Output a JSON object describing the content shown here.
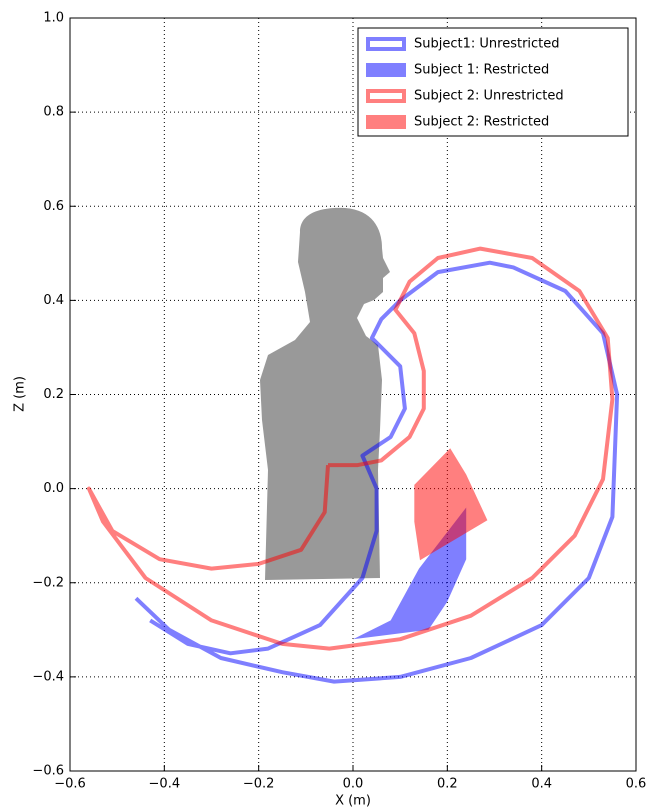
{
  "chart_data": {
    "type": "line",
    "xlabel": "X (m)",
    "ylabel": "Z (m)",
    "xlim": [
      -0.6,
      0.6
    ],
    "xticks": [
      {
        "value": -0.6,
        "label": "−0.6"
      },
      {
        "value": -0.4,
        "label": "−0.4"
      },
      {
        "value": -0.2,
        "label": "−0.2"
      },
      {
        "value": 0,
        "label": "0.0"
      },
      0.2,
      0.4,
      0.6
    ],
    "ylim": [
      -0.6,
      1.0
    ],
    "yticks": [
      {
        "value": -0.6,
        "label": "−0.6"
      },
      {
        "value": -0.4,
        "label": "−0.4"
      },
      {
        "value": -0.2,
        "label": "−0.2"
      },
      {
        "value": 0,
        "label": "0.0"
      },
      0.2,
      0.4,
      0.6,
      0.8,
      {
        "value": 1.0,
        "label": "1.0"
      }
    ],
    "grid": true,
    "legend": "upper right",
    "series": [
      {
        "name": "Subject1: Unrestricted",
        "style": "line",
        "color": "#0000ff",
        "alpha": 0.5,
        "x": [
          -0.46,
          -0.39,
          -0.28,
          -0.15,
          -0.04,
          0.1,
          0.25,
          0.4,
          0.5,
          0.55,
          0.56,
          0.53,
          0.45,
          0.34,
          0.29,
          0.18,
          0.1,
          0.06,
          0.04,
          0.1,
          0.11,
          0.08,
          0.02,
          0.05,
          0.05,
          0.02,
          -0.07,
          -0.18,
          -0.26,
          -0.35,
          -0.43
        ],
        "y": [
          -0.233,
          -0.3,
          -0.36,
          -0.39,
          -0.41,
          -0.4,
          -0.36,
          -0.29,
          -0.19,
          -0.06,
          0.2,
          0.33,
          0.42,
          0.47,
          0.48,
          0.46,
          0.4,
          0.36,
          0.32,
          0.26,
          0.17,
          0.11,
          0.07,
          0.0,
          -0.09,
          -0.19,
          -0.29,
          -0.34,
          -0.35,
          -0.33,
          -0.28
        ]
      },
      {
        "name": "Subject 1: Restricted",
        "style": "fill",
        "color": "#0000ff",
        "alpha": 0.5,
        "x": [
          0.0,
          0.08,
          0.14,
          0.24,
          0.24,
          0.2,
          0.16
        ],
        "y": [
          -0.32,
          -0.28,
          -0.17,
          -0.04,
          -0.15,
          -0.24,
          -0.3
        ]
      },
      {
        "name": "Subject 2: Unrestricted",
        "style": "line",
        "color": "#ff0000",
        "alpha": 0.5,
        "x": [
          -0.053,
          -0.06,
          -0.11,
          -0.2,
          -0.3,
          -0.41,
          -0.51,
          -0.56,
          -0.53,
          -0.44,
          -0.3,
          -0.15,
          -0.05,
          0.1,
          0.25,
          0.38,
          0.47,
          0.53,
          0.55,
          0.54,
          0.48,
          0.38,
          0.27,
          0.18,
          0.12,
          0.09,
          0.13,
          0.15,
          0.15,
          0.12,
          0.06,
          0.01,
          -0.053
        ],
        "y": [
          0.05,
          -0.05,
          -0.13,
          -0.16,
          -0.17,
          -0.15,
          -0.09,
          0.0,
          -0.07,
          -0.19,
          -0.28,
          -0.33,
          -0.34,
          -0.32,
          -0.27,
          -0.19,
          -0.1,
          0.02,
          0.19,
          0.32,
          0.42,
          0.49,
          0.51,
          0.49,
          0.44,
          0.38,
          0.33,
          0.25,
          0.17,
          0.11,
          0.06,
          0.05,
          0.05
        ]
      },
      {
        "name": "Subject 2: Restricted",
        "style": "fill",
        "color": "#ff0000",
        "alpha": 0.5,
        "x": [
          0.13,
          0.206,
          0.24,
          0.285,
          0.142,
          0.13
        ],
        "y": [
          0.008,
          0.086,
          0.03,
          -0.067,
          -0.152,
          -0.07
        ]
      }
    ]
  }
}
